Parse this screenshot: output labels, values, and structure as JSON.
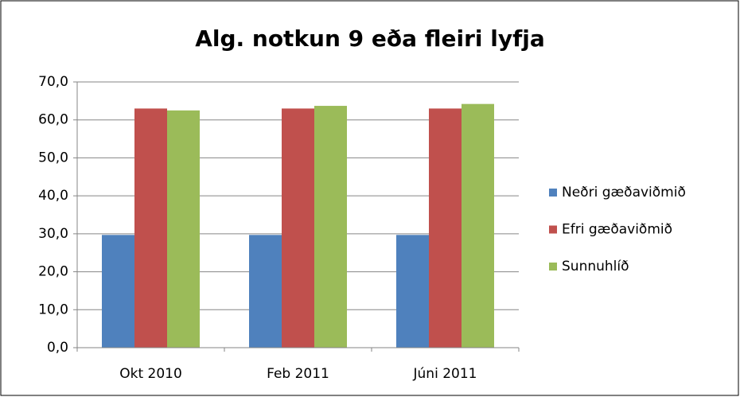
{
  "chart_data": {
    "type": "bar",
    "title": "Alg. notkun 9 eða fleiri lyfja",
    "categories": [
      "Okt 2010",
      "Feb 2011",
      "Júni 2011"
    ],
    "series": [
      {
        "name": "Neðri gæðaviðmið",
        "color": "#4f81bd",
        "values": [
          29.7,
          29.7,
          29.7
        ]
      },
      {
        "name": "Efri gæðaviðmið",
        "color": "#c0504d",
        "values": [
          63.0,
          63.0,
          63.0
        ]
      },
      {
        "name": "Sunnuhlíð",
        "color": "#9bbb59",
        "values": [
          62.5,
          63.7,
          64.2
        ]
      }
    ],
    "ylim": [
      0,
      70
    ],
    "yticks": [
      {
        "value": 0,
        "label": "0,0"
      },
      {
        "value": 10,
        "label": "10,0"
      },
      {
        "value": 20,
        "label": "20,0"
      },
      {
        "value": 30,
        "label": "30,0"
      },
      {
        "value": 40,
        "label": "40,0"
      },
      {
        "value": 50,
        "label": "50,0"
      },
      {
        "value": 60,
        "label": "60,0"
      },
      {
        "value": 70,
        "label": "70,0"
      }
    ],
    "grid": true,
    "legend": "right"
  }
}
